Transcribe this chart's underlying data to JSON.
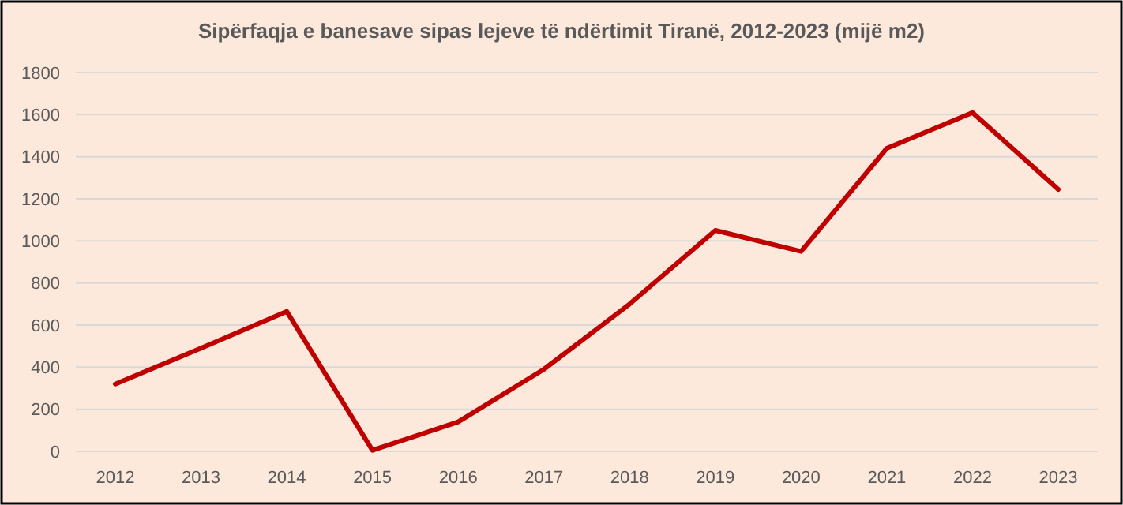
{
  "chart_data": {
    "type": "line",
    "title": "Sipërfaqja e banesave sipas lejeve të ndërtimit Tiranë, 2012-2023 (mijë m2)",
    "categories": [
      "2012",
      "2013",
      "2014",
      "2015",
      "2016",
      "2017",
      "2018",
      "2019",
      "2020",
      "2021",
      "2022",
      "2023"
    ],
    "series": [
      {
        "color": "#c00000",
        "values": [
          320,
          490,
          665,
          5,
          140,
          390,
          700,
          1050,
          950,
          1440,
          1610,
          1245
        ]
      }
    ],
    "ylim": [
      0,
      1800
    ],
    "yticks": [
      0,
      200,
      400,
      600,
      800,
      1000,
      1200,
      1400,
      1600,
      1800
    ],
    "grid": "y",
    "marker": "none",
    "line_style": "solid"
  }
}
